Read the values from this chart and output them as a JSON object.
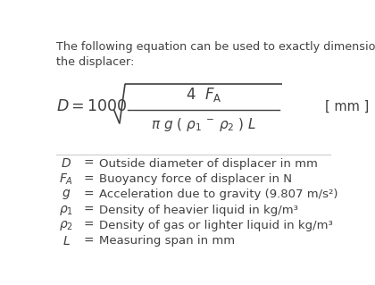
{
  "bg_color": "#ffffff",
  "text_color": "#404040",
  "intro_line1": "The following equation can be used to exactly dimension",
  "intro_line2": "the displacer:",
  "unit_label": "[ mm ]",
  "definitions": [
    {
      "symbol": "$D$",
      "eq": "=",
      "desc": "Outside diameter of displacer in mm"
    },
    {
      "symbol": "$F_A$",
      "eq": "=",
      "desc": "Buoyancy force of displacer in N"
    },
    {
      "symbol": "$g$",
      "eq": "=",
      "desc": "Acceleration due to gravity (9.807 m/s²)"
    },
    {
      "symbol": "$\\rho_1$",
      "eq": "=",
      "desc": "Density of heavier liquid in kg/m³"
    },
    {
      "symbol": "$\\rho_2$",
      "eq": "=",
      "desc": "Density of gas or lighter liquid in kg/m³"
    },
    {
      "symbol": "$L$",
      "eq": "=",
      "desc": "Measuring span in mm"
    }
  ],
  "figsize": [
    4.2,
    3.19
  ],
  "dpi": 100
}
